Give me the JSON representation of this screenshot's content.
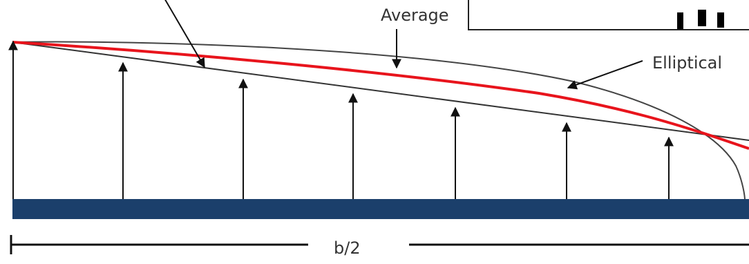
{
  "labels": {
    "average": "Average",
    "elliptical": "Elliptical",
    "span": "b/2"
  },
  "colors": {
    "spar": "#1b3f6b",
    "average_curve": "#e8141c",
    "outline": "#222222",
    "arrow": "#111111"
  }
}
